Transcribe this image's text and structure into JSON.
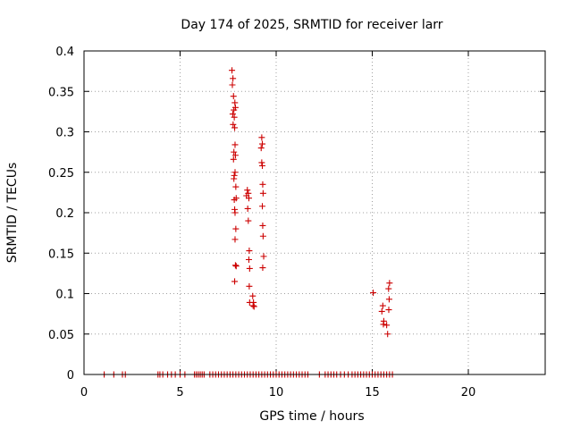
{
  "chart_data": {
    "type": "scatter",
    "title": "Day 174 of 2025, SRMTID for receiver larr",
    "xlabel": "GPS time / hours",
    "ylabel": "SRMTID / TECUs",
    "xlim": [
      0,
      24
    ],
    "ylim": [
      0,
      0.4
    ],
    "grid": true,
    "marker": "+",
    "series_color": "#cc0000",
    "x_ticks": [
      {
        "value": 0,
        "label": "0"
      },
      {
        "value": 5,
        "label": "5"
      },
      {
        "value": 10,
        "label": "10"
      },
      {
        "value": 15,
        "label": "15"
      },
      {
        "value": 20,
        "label": "20"
      }
    ],
    "y_ticks": [
      {
        "value": 0,
        "label": "0"
      },
      {
        "value": 0.05,
        "label": "0.05"
      },
      {
        "value": 0.1,
        "label": "0.1"
      },
      {
        "value": 0.15,
        "label": "0.15"
      },
      {
        "value": 0.2,
        "label": "0.2"
      },
      {
        "value": 0.25,
        "label": "0.25"
      },
      {
        "value": 0.3,
        "label": "0.3"
      },
      {
        "value": 0.35,
        "label": "0.35"
      },
      {
        "value": 0.4,
        "label": "0.4"
      }
    ],
    "series": [
      {
        "name": "SRMTID",
        "points": [
          [
            1.05,
            0
          ],
          [
            1.55,
            0
          ],
          [
            2.0,
            0
          ],
          [
            2.15,
            0
          ],
          [
            3.85,
            0
          ],
          [
            3.95,
            0
          ],
          [
            4.1,
            0
          ],
          [
            4.35,
            0
          ],
          [
            4.55,
            0
          ],
          [
            4.75,
            0
          ],
          [
            5.0,
            0
          ],
          [
            5.25,
            0
          ],
          [
            5.75,
            0
          ],
          [
            5.85,
            0
          ],
          [
            5.95,
            0
          ],
          [
            6.05,
            0
          ],
          [
            6.15,
            0
          ],
          [
            6.25,
            0
          ],
          [
            6.55,
            0
          ],
          [
            6.7,
            0
          ],
          [
            6.85,
            0
          ],
          [
            7.0,
            0
          ],
          [
            7.15,
            0
          ],
          [
            7.3,
            0
          ],
          [
            7.45,
            0
          ],
          [
            7.6,
            0
          ],
          [
            7.75,
            0
          ],
          [
            7.9,
            0
          ],
          [
            8.05,
            0
          ],
          [
            8.2,
            0
          ],
          [
            8.35,
            0
          ],
          [
            8.5,
            0
          ],
          [
            8.65,
            0
          ],
          [
            8.8,
            0
          ],
          [
            8.95,
            0
          ],
          [
            9.1,
            0
          ],
          [
            9.25,
            0
          ],
          [
            9.4,
            0
          ],
          [
            9.55,
            0
          ],
          [
            9.7,
            0
          ],
          [
            9.85,
            0
          ],
          [
            10.0,
            0
          ],
          [
            10.15,
            0
          ],
          [
            10.3,
            0
          ],
          [
            10.45,
            0
          ],
          [
            10.6,
            0
          ],
          [
            10.75,
            0
          ],
          [
            10.9,
            0
          ],
          [
            11.05,
            0
          ],
          [
            11.2,
            0
          ],
          [
            11.35,
            0
          ],
          [
            11.5,
            0
          ],
          [
            11.65,
            0
          ],
          [
            12.25,
            0
          ],
          [
            12.55,
            0
          ],
          [
            12.7,
            0
          ],
          [
            12.85,
            0
          ],
          [
            13.0,
            0
          ],
          [
            13.15,
            0
          ],
          [
            13.35,
            0
          ],
          [
            13.55,
            0
          ],
          [
            13.75,
            0
          ],
          [
            13.95,
            0
          ],
          [
            14.1,
            0
          ],
          [
            14.25,
            0
          ],
          [
            14.4,
            0
          ],
          [
            14.55,
            0
          ],
          [
            14.7,
            0
          ],
          [
            14.85,
            0
          ],
          [
            15.0,
            0
          ],
          [
            15.15,
            0
          ],
          [
            15.3,
            0
          ],
          [
            15.45,
            0
          ],
          [
            15.6,
            0
          ],
          [
            15.75,
            0
          ],
          [
            15.9,
            0
          ],
          [
            16.05,
            0
          ],
          [
            7.7,
            0.376
          ],
          [
            7.75,
            0.366
          ],
          [
            7.72,
            0.358
          ],
          [
            7.78,
            0.344
          ],
          [
            7.85,
            0.336
          ],
          [
            7.88,
            0.33
          ],
          [
            7.8,
            0.327
          ],
          [
            7.74,
            0.322
          ],
          [
            7.82,
            0.318
          ],
          [
            7.76,
            0.309
          ],
          [
            7.84,
            0.305
          ],
          [
            7.86,
            0.284
          ],
          [
            7.8,
            0.275
          ],
          [
            7.88,
            0.271
          ],
          [
            7.78,
            0.266
          ],
          [
            7.86,
            0.25
          ],
          [
            7.82,
            0.246
          ],
          [
            7.8,
            0.242
          ],
          [
            7.9,
            0.232
          ],
          [
            7.92,
            0.218
          ],
          [
            7.82,
            0.216
          ],
          [
            7.84,
            0.204
          ],
          [
            7.86,
            0.2
          ],
          [
            7.9,
            0.18
          ],
          [
            7.86,
            0.167
          ],
          [
            7.92,
            0.134
          ],
          [
            7.88,
            0.135
          ],
          [
            7.84,
            0.115
          ],
          [
            8.5,
            0.228
          ],
          [
            8.55,
            0.224
          ],
          [
            8.45,
            0.221
          ],
          [
            8.58,
            0.218
          ],
          [
            8.52,
            0.205
          ],
          [
            8.55,
            0.19
          ],
          [
            8.6,
            0.153
          ],
          [
            8.58,
            0.142
          ],
          [
            8.62,
            0.131
          ],
          [
            8.6,
            0.109
          ],
          [
            8.62,
            0.089
          ],
          [
            8.78,
            0.097
          ],
          [
            8.82,
            0.089
          ],
          [
            8.8,
            0.085
          ],
          [
            8.85,
            0.084
          ],
          [
            9.25,
            0.293
          ],
          [
            9.28,
            0.285
          ],
          [
            9.22,
            0.28
          ],
          [
            9.25,
            0.262
          ],
          [
            9.28,
            0.258
          ],
          [
            9.3,
            0.235
          ],
          [
            9.32,
            0.224
          ],
          [
            9.28,
            0.208
          ],
          [
            9.3,
            0.184
          ],
          [
            9.32,
            0.171
          ],
          [
            9.35,
            0.146
          ],
          [
            9.3,
            0.132
          ],
          [
            15.05,
            0.101
          ],
          [
            15.55,
            0.085
          ],
          [
            15.5,
            0.078
          ],
          [
            15.6,
            0.066
          ],
          [
            15.58,
            0.062
          ],
          [
            15.75,
            0.061
          ],
          [
            15.8,
            0.05
          ],
          [
            15.9,
            0.113
          ],
          [
            15.85,
            0.106
          ],
          [
            15.88,
            0.093
          ],
          [
            15.86,
            0.08
          ]
        ]
      }
    ]
  }
}
